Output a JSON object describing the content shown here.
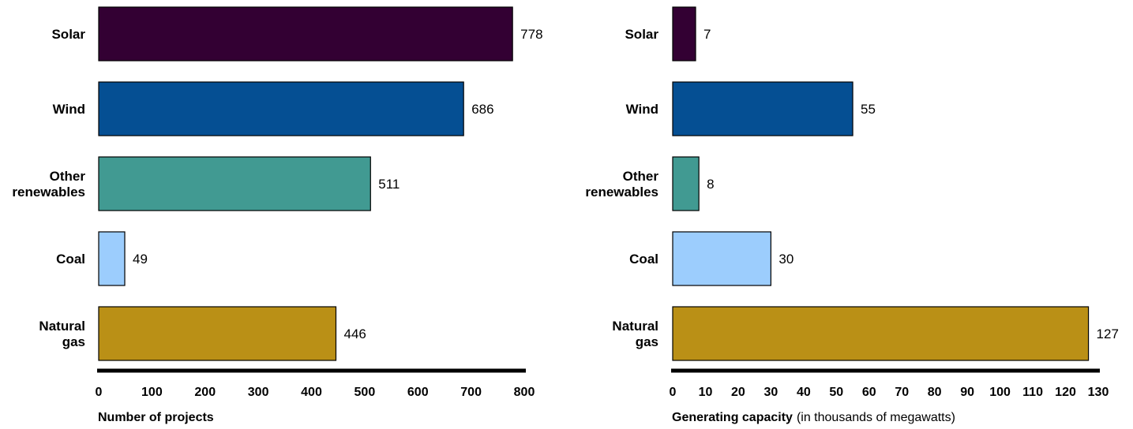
{
  "chart_data": [
    {
      "type": "bar",
      "orientation": "horizontal",
      "categories": [
        "Solar",
        "Wind",
        "Other renewables",
        "Coal",
        "Natural gas"
      ],
      "category_lines": [
        [
          "Solar"
        ],
        [
          "Wind"
        ],
        [
          "Other",
          "renewables"
        ],
        [
          "Coal"
        ],
        [
          "Natural",
          "gas"
        ]
      ],
      "values": [
        778,
        686,
        511,
        49,
        446
      ],
      "value_labels": [
        "778",
        "686",
        "511",
        "49",
        "446"
      ],
      "colors": [
        "#330033",
        "#054f93",
        "#419a92",
        "#9ccdfd",
        "#ba9016"
      ],
      "xlabel": "Number of projects",
      "xlabel_unit": "",
      "xlim": [
        0,
        800
      ],
      "xticks": [
        "0",
        "100",
        "200",
        "300",
        "400",
        "500",
        "600",
        "700",
        "800"
      ],
      "grid": false,
      "legend": "none"
    },
    {
      "type": "bar",
      "orientation": "horizontal",
      "categories": [
        "Solar",
        "Wind",
        "Other renewables",
        "Coal",
        "Natural gas"
      ],
      "category_lines": [
        [
          "Solar"
        ],
        [
          "Wind"
        ],
        [
          "Other",
          "renewables"
        ],
        [
          "Coal"
        ],
        [
          "Natural",
          "gas"
        ]
      ],
      "values": [
        7,
        55,
        8,
        30,
        127
      ],
      "value_labels": [
        "7",
        "55",
        "8",
        "30",
        "127"
      ],
      "colors": [
        "#330033",
        "#054f93",
        "#419a92",
        "#9ccdfd",
        "#ba9016"
      ],
      "xlabel": "Generating capacity",
      "xlabel_unit": "(in thousands of megawatts)",
      "xlim": [
        0,
        130
      ],
      "xticks": [
        "0",
        "10",
        "20",
        "30",
        "40",
        "50",
        "60",
        "70",
        "80",
        "90",
        "100",
        "110",
        "120",
        "130"
      ],
      "grid": false,
      "legend": "none"
    }
  ]
}
